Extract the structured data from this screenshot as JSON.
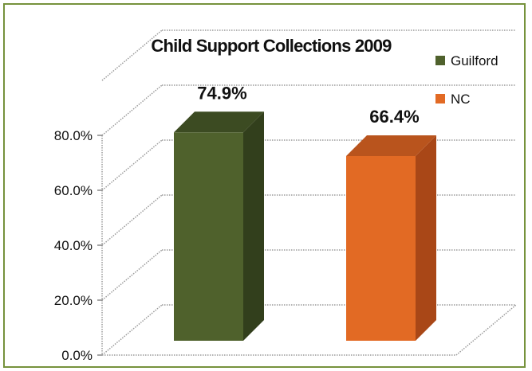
{
  "chart_data": {
    "type": "bar",
    "title": "Child Support Collections 2009",
    "categories": [
      "Guilford",
      "NC"
    ],
    "values": [
      74.9,
      66.4
    ],
    "value_labels": [
      "74.9%",
      "66.4%"
    ],
    "ylim": [
      0,
      80
    ],
    "y_ticks": [
      0,
      20,
      40,
      60,
      80
    ],
    "y_tick_labels": [
      "0.0%",
      "20.0%",
      "40.0%",
      "60.0%",
      "80.0%"
    ],
    "legend": {
      "placement": "top-right",
      "entries": [
        "Guilford",
        "NC"
      ]
    },
    "colors": {
      "Guilford": {
        "front": "#4f612c",
        "side": "#323f1c",
        "top": "#3c4b22"
      },
      "NC": {
        "front": "#e26a24",
        "side": "#a94717",
        "top": "#b9541d"
      }
    },
    "grid": true,
    "style": "3d-column"
  }
}
